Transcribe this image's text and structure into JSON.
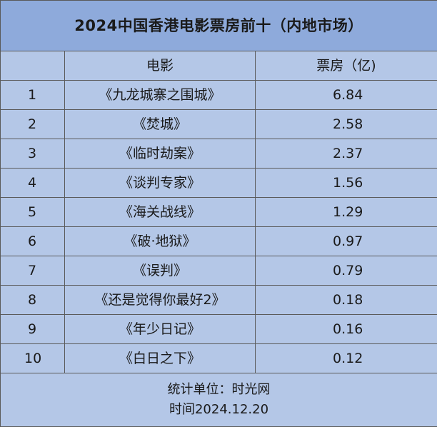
{
  "title": "2024中国香港电影票房前十（内地市场）",
  "headers": {
    "rank": "",
    "movie": "电影",
    "box_office": "票房（亿)"
  },
  "rows": [
    {
      "rank": "1",
      "movie": "《九龙城寨之围城》",
      "box_office": "6.84"
    },
    {
      "rank": "2",
      "movie": "《焚城》",
      "box_office": "2.58"
    },
    {
      "rank": "3",
      "movie": "《临时劫案》",
      "box_office": "2.37"
    },
    {
      "rank": "4",
      "movie": "《谈判专家》",
      "box_office": "1.56"
    },
    {
      "rank": "5",
      "movie": "《海关战线》",
      "box_office": "1.29"
    },
    {
      "rank": "6",
      "movie": "《破·地狱》",
      "box_office": "0.97"
    },
    {
      "rank": "7",
      "movie": "《误判》",
      "box_office": "0.79"
    },
    {
      "rank": "8",
      "movie": "《还是觉得你最好2》",
      "box_office": "0.18"
    },
    {
      "rank": "9",
      "movie": "《年少日记》",
      "box_office": "0.16"
    },
    {
      "rank": "10",
      "movie": "《白日之下》",
      "box_office": "0.12"
    }
  ],
  "footer": {
    "source": "统计单位：时光网",
    "time": "时间2024.12.20"
  },
  "colors": {
    "title_background": "#8eaadb",
    "table_background": "#b4c7e7",
    "border": "#5a5a5a"
  }
}
